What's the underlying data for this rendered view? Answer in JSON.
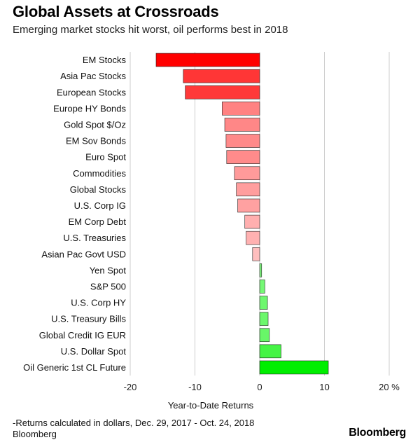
{
  "header": {
    "title": "Global Assets at Crossroads",
    "subtitle": "Emerging market stocks hit worst, oil performs best in 2018"
  },
  "chart_data": {
    "type": "bar",
    "orientation": "horizontal",
    "categories": [
      "EM Stocks",
      "Asia Pac Stocks",
      "European Stocks",
      "Europe HY Bonds",
      "Gold Spot $/Oz",
      "EM Sov Bonds",
      "Euro Spot",
      "Commodities",
      "Global Stocks",
      "U.S. Corp IG",
      "EM Corp Debt",
      "U.S. Treasuries",
      "Asian Pac Govt USD",
      "Yen Spot",
      "S&P 500",
      "U.S. Corp HY",
      "U.S. Treasury Bills",
      "Global Credit IG EUR",
      "U.S. Dollar Spot",
      "Oil Generic 1st CL Future"
    ],
    "values": [
      -16.0,
      -11.8,
      -11.5,
      -5.8,
      -5.4,
      -5.2,
      -5.1,
      -3.9,
      -3.6,
      -3.4,
      -2.3,
      -2.1,
      -1.1,
      0.3,
      0.8,
      1.2,
      1.3,
      1.5,
      3.3,
      10.6
    ],
    "xlim": [
      -20,
      20
    ],
    "xticks": [
      "-20",
      "-10",
      "0",
      "10",
      "20 %"
    ],
    "xticks_values": [
      -20,
      -10,
      0,
      10,
      20
    ],
    "xlabel": "Year-to-Date Returns",
    "colors": {
      "negative_strong": "#ff0000",
      "negative_light": "#ffcccc",
      "positive_light": "#ccffcc",
      "positive_strong": "#00ee00",
      "grid": "#cccccc"
    }
  },
  "footer": {
    "note_line1": "-Returns calculated in dollars, Dec. 29, 2017 - Oct. 24, 2018",
    "note_line2": "Bloomberg",
    "logo": "Bloomberg"
  }
}
